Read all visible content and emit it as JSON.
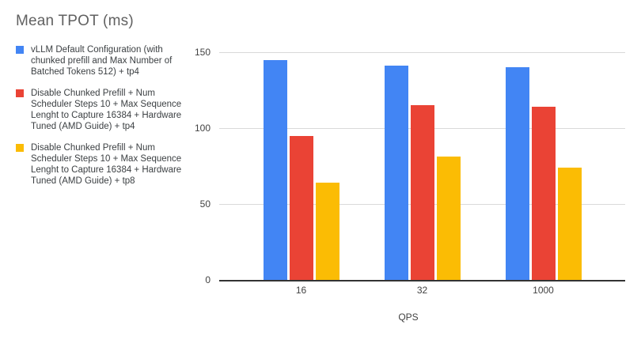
{
  "title": "Mean TPOT (ms)",
  "legend": {
    "items": [
      {
        "label": "vLLM Default Configuration (with chunked prefill and Max Number of Batched Tokens 512) + tp4",
        "color": "#4285F4"
      },
      {
        "label": "Disable Chunked Prefill + Num Scheduler Steps 10 + Max Sequence Lenght to Capture 16384 + Hardware Tuned (AMD Guide) + tp4",
        "color": "#EA4335"
      },
      {
        "label": "Disable Chunked Prefill + Num Scheduler Steps 10 + Max Sequence Lenght to Capture 16384 + Hardware Tuned (AMD Guide) + tp8",
        "color": "#FBBC04"
      }
    ]
  },
  "chart_data": {
    "type": "bar",
    "title": "Mean TPOT (ms)",
    "categories": [
      "16",
      "32",
      "1000"
    ],
    "series": [
      {
        "name": "vLLM Default Configuration (with chunked prefill and Max Number of Batched Tokens 512) + tp4",
        "color": "#4285F4",
        "values": [
          145,
          141,
          140
        ]
      },
      {
        "name": "Disable Chunked Prefill + Num Scheduler Steps 10 + Max Sequence Lenght to Capture 16384 + Hardware Tuned (AMD Guide) + tp4",
        "color": "#EA4335",
        "values": [
          95,
          115,
          114
        ]
      },
      {
        "name": "Disable Chunked Prefill + Num Scheduler Steps 10 + Max Sequence Lenght to Capture 16384 + Hardware Tuned (AMD Guide) + tp8",
        "color": "#FBBC04",
        "values": [
          64,
          81,
          74
        ]
      }
    ],
    "xlabel": "QPS",
    "ylabel": "",
    "ylim": [
      0,
      150
    ],
    "yticks": [
      0,
      50,
      100,
      150
    ],
    "grid": true,
    "legend_position": "left",
    "colors": {
      "grid": "#d9d9d9",
      "axis_line": "#333333",
      "title_text": "#616161",
      "axis_text": "#424242",
      "legend_text": "#3c4043",
      "background": "#ffffff"
    }
  }
}
